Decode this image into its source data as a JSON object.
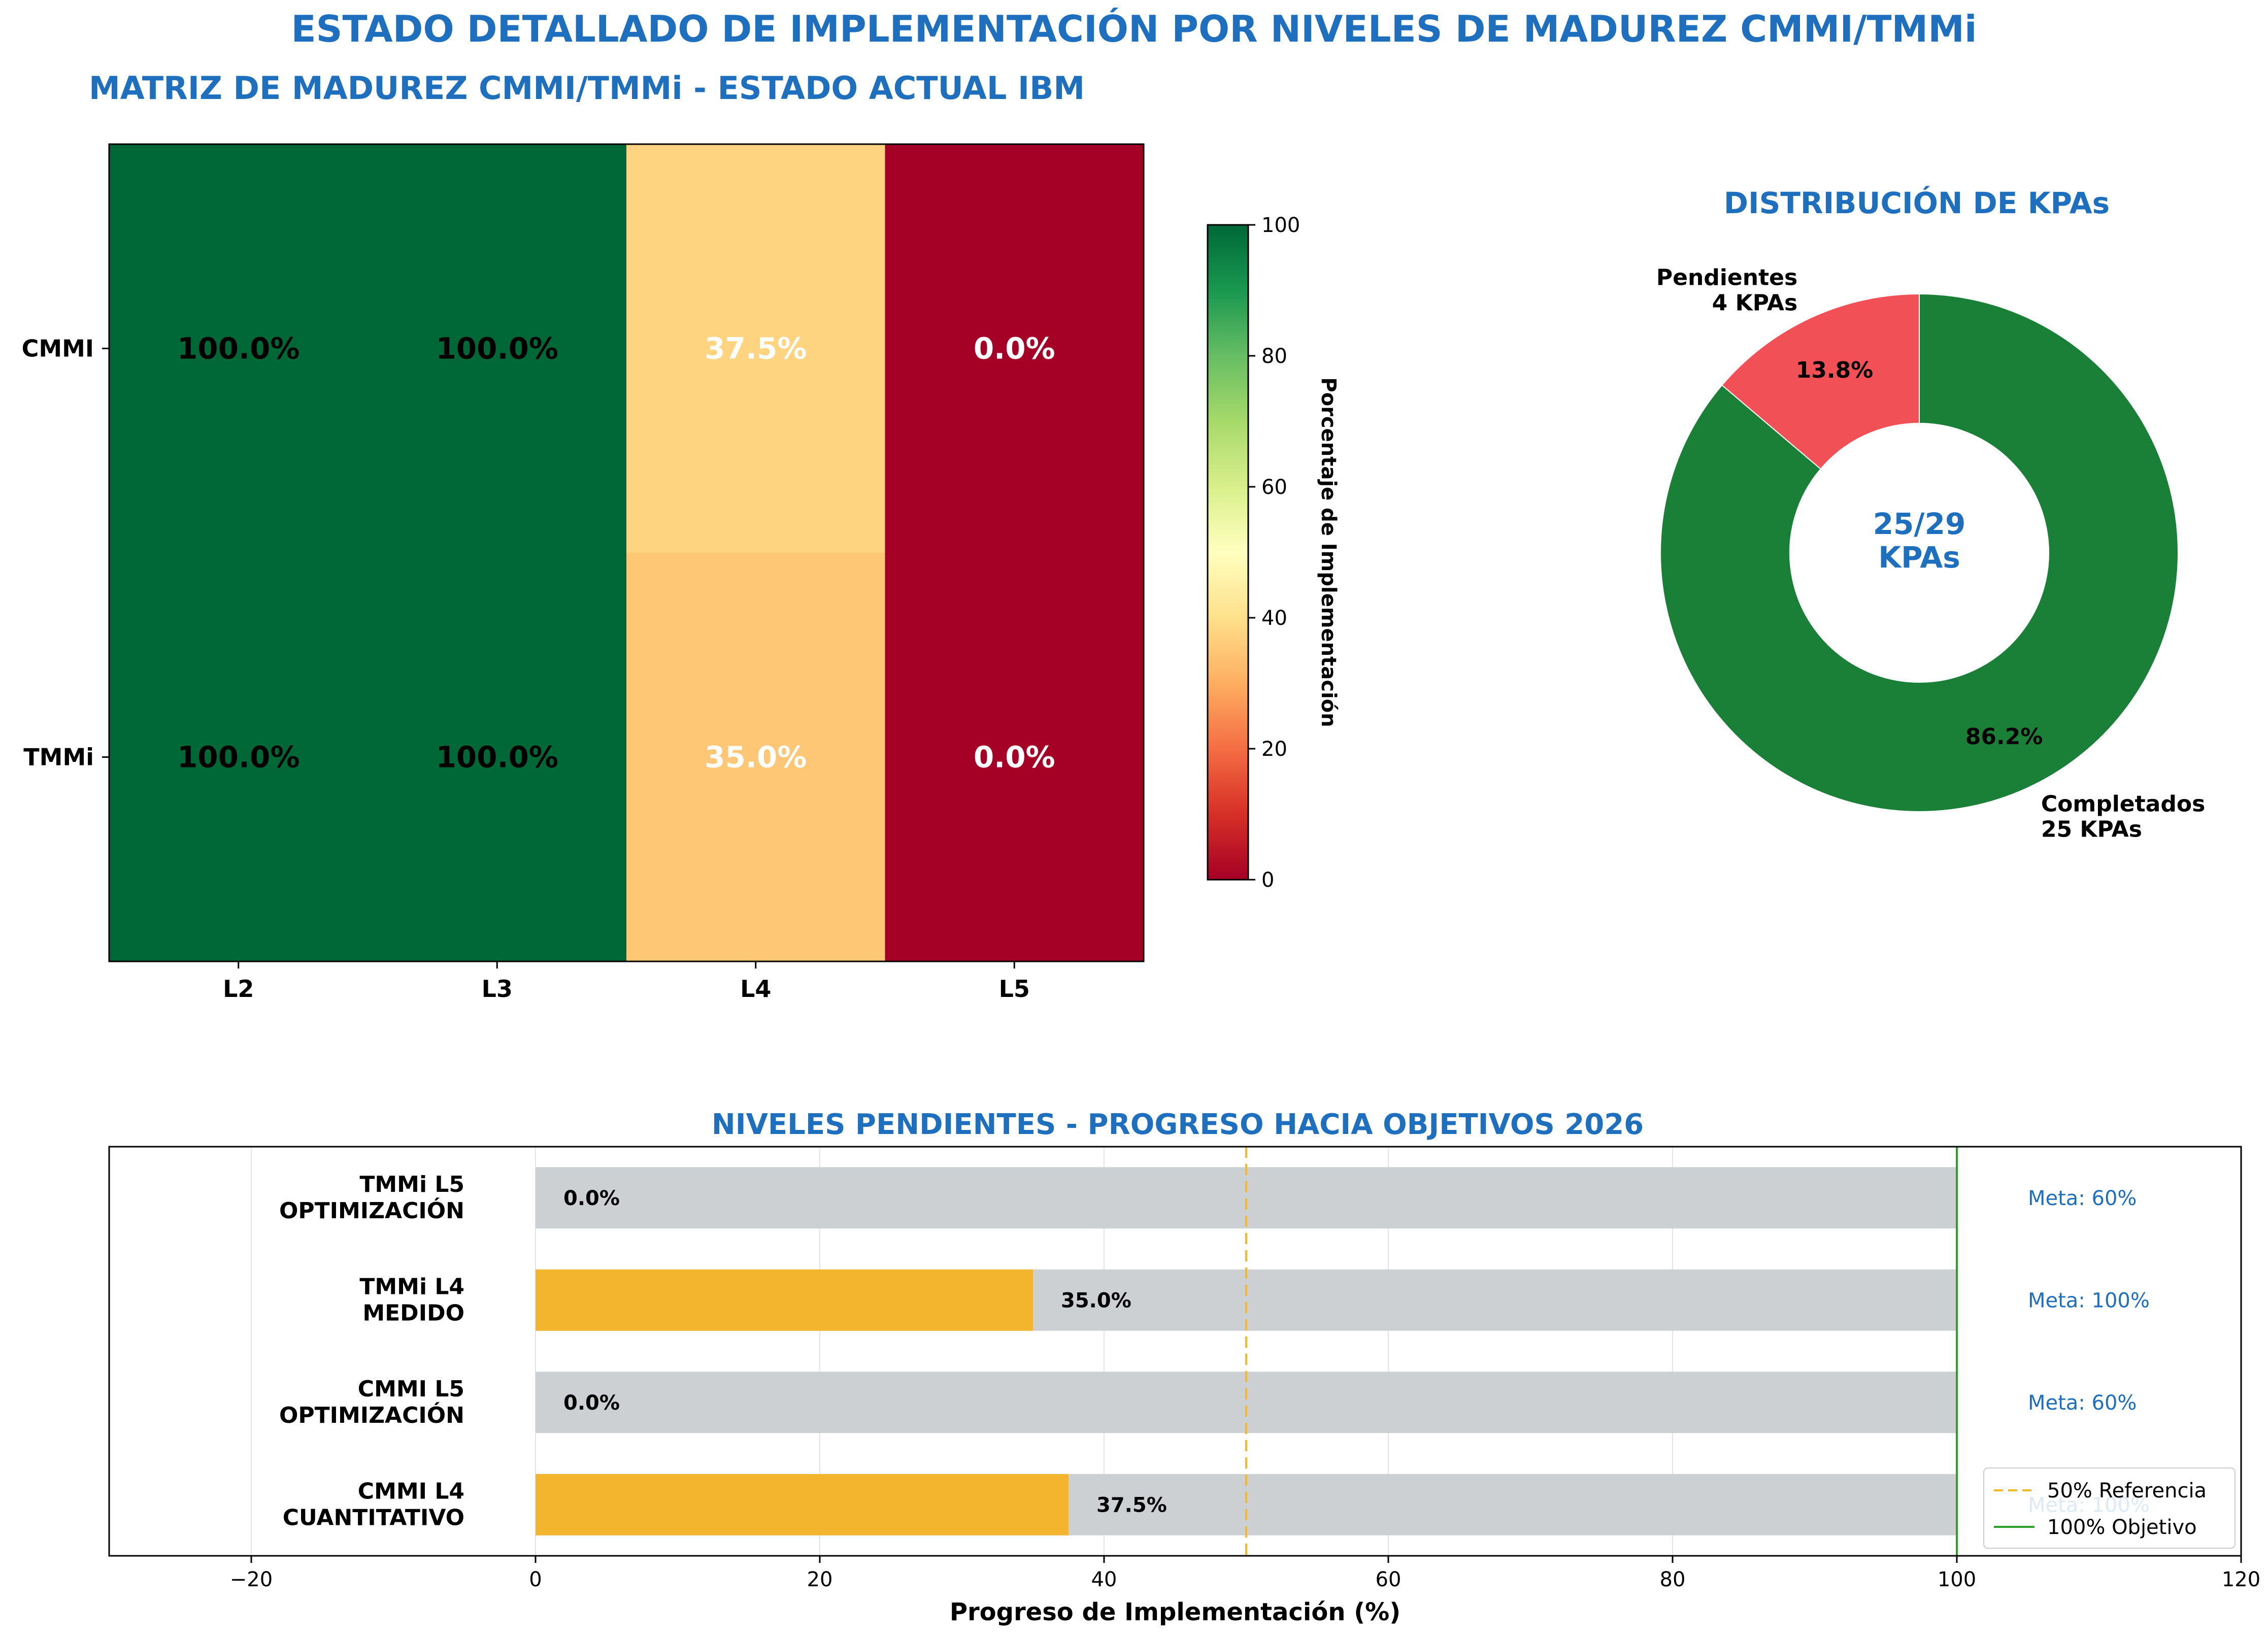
{
  "figure": {
    "suptitle": "ESTADO DETALLADO DE IMPLEMENTACIÓN POR NIVELES DE MADUREZ CMMI/TMMi",
    "title_color": "#1f6fbf"
  },
  "chart_data": [
    {
      "type": "heatmap",
      "title": "MATRIZ DE MADUREZ CMMI/TMMi - ESTADO ACTUAL IBM",
      "rows": [
        "CMMI",
        "TMMi"
      ],
      "columns": [
        "L2",
        "L3",
        "L4",
        "L5"
      ],
      "values": [
        [
          100.0,
          100.0,
          37.5,
          0.0
        ],
        [
          100.0,
          100.0,
          35.0,
          0.0
        ]
      ],
      "cell_labels": [
        [
          "100.0%",
          "100.0%",
          "37.5%",
          "0.0%"
        ],
        [
          "100.0%",
          "100.0%",
          "35.0%",
          "0.0%"
        ]
      ],
      "colorscale": "RdYlGn",
      "vmin": 0,
      "vmax": 100,
      "colorbar": {
        "label": "Porcentaje de Implementación",
        "ticks": [
          "0",
          "20",
          "40",
          "60",
          "80",
          "100"
        ]
      }
    },
    {
      "type": "pie",
      "title": "DISTRIBUCIÓN DE KPAs",
      "slices": [
        {
          "label": "Pendientes\n4 KPAs",
          "value": 4,
          "percent_label": "13.8%",
          "color": "#f25057"
        },
        {
          "label": "Completados\n25 KPAs",
          "value": 25,
          "percent_label": "86.2%",
          "color": "#1a8038"
        }
      ],
      "center_text": "25/29\nKPAs",
      "donut": true
    },
    {
      "type": "bar",
      "orientation": "horizontal",
      "title": "NIVELES PENDIENTES - PROGRESO HACIA OBJETIVOS 2026",
      "xlabel": "Progreso de Implementación (%)",
      "ylabel": "",
      "xlim": [
        -30,
        120
      ],
      "xticks": [
        "−20",
        "0",
        "20",
        "40",
        "60",
        "80",
        "100",
        "120"
      ],
      "categories": [
        "TMMi L5\nOPTIMIZACIÓN",
        "TMMi L4\nMEDIDO",
        "CMMI L5\nOPTIMIZACIÓN",
        "CMMI L4\nCUANTITATIVO"
      ],
      "values": [
        0.0,
        35.0,
        0.0,
        37.5
      ],
      "value_labels": [
        "0.0%",
        "35.0%",
        "0.0%",
        "37.5%"
      ],
      "background_value": 100,
      "goals": [
        "Meta: 60%",
        "Meta: 100%",
        "Meta: 60%",
        "Meta: 100%"
      ],
      "reference_lines": [
        {
          "value": 50,
          "label": "50% Referencia",
          "color": "#f2b82e",
          "style": "dashed"
        },
        {
          "value": 100,
          "label": "100% Objetivo",
          "color": "#2ca02c",
          "style": "solid"
        }
      ],
      "bar_color": "#f2b52d",
      "background_bar_color": "#cdd0d3",
      "grid": true,
      "legend_position": "lower-right"
    }
  ]
}
